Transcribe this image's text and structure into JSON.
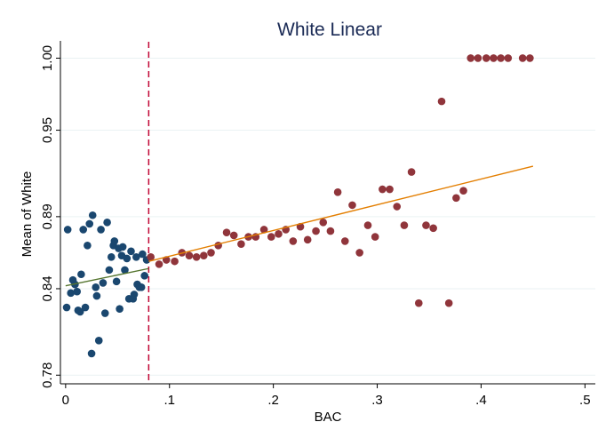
{
  "chart_data": {
    "type": "scatter",
    "title": "White Linear",
    "xlabel": "BAC",
    "ylabel": "Mean of White",
    "xlim": [
      -0.005,
      0.51
    ],
    "ylim": [
      0.774,
      1.012
    ],
    "x_ticks": [
      {
        "value": 0,
        "label": "0"
      },
      {
        "value": 0.1,
        "label": ".1"
      },
      {
        "value": 0.2,
        "label": ".2"
      },
      {
        "value": 0.3,
        "label": ".3"
      },
      {
        "value": 0.4,
        "label": ".4"
      },
      {
        "value": 0.5,
        "label": ".5"
      }
    ],
    "y_ticks": [
      {
        "value": 0.78,
        "label": "0.78"
      },
      {
        "value": 0.84,
        "label": "0.84"
      },
      {
        "value": 0.89,
        "label": "0.89"
      },
      {
        "value": 0.95,
        "label": "0.95"
      },
      {
        "value": 1.0,
        "label": "1.00"
      }
    ],
    "grid": "horizontal",
    "cutoff_x": 0.08,
    "colors": {
      "below": "#1a476f",
      "above": "#90353b",
      "fit_below": "#55752f",
      "fit_above": "#e37e00",
      "cutoff": "#c10534",
      "title": "#1a2a55"
    },
    "series": [
      {
        "points": [
          [
            0.001,
            0.827
          ],
          [
            0.002,
            0.881
          ],
          [
            0.005,
            0.837
          ],
          [
            0.007,
            0.846
          ],
          [
            0.009,
            0.843
          ],
          [
            0.011,
            0.838
          ],
          [
            0.012,
            0.825
          ],
          [
            0.014,
            0.824
          ],
          [
            0.015,
            0.85
          ],
          [
            0.017,
            0.881
          ],
          [
            0.019,
            0.827
          ],
          [
            0.021,
            0.87
          ],
          [
            0.023,
            0.885
          ],
          [
            0.025,
            0.795
          ],
          [
            0.026,
            0.891
          ],
          [
            0.029,
            0.841
          ],
          [
            0.03,
            0.835
          ],
          [
            0.032,
            0.804
          ],
          [
            0.034,
            0.881
          ],
          [
            0.036,
            0.844
          ],
          [
            0.038,
            0.823
          ],
          [
            0.04,
            0.886
          ],
          [
            0.042,
            0.853
          ],
          [
            0.044,
            0.862
          ],
          [
            0.046,
            0.87
          ],
          [
            0.047,
            0.873
          ],
          [
            0.049,
            0.845
          ],
          [
            0.051,
            0.868
          ],
          [
            0.052,
            0.826
          ],
          [
            0.054,
            0.863
          ],
          [
            0.055,
            0.869
          ],
          [
            0.057,
            0.853
          ],
          [
            0.059,
            0.861
          ],
          [
            0.061,
            0.833
          ],
          [
            0.063,
            0.866
          ],
          [
            0.065,
            0.833
          ],
          [
            0.066,
            0.836
          ],
          [
            0.068,
            0.862
          ],
          [
            0.069,
            0.843
          ],
          [
            0.071,
            0.841
          ],
          [
            0.073,
            0.841
          ],
          [
            0.074,
            0.864
          ],
          [
            0.076,
            0.849
          ],
          [
            0.078,
            0.86
          ]
        ]
      },
      {
        "points": [
          [
            0.082,
            0.862
          ],
          [
            0.09,
            0.857
          ],
          [
            0.097,
            0.86
          ],
          [
            0.105,
            0.859
          ],
          [
            0.112,
            0.865
          ],
          [
            0.119,
            0.863
          ],
          [
            0.126,
            0.862
          ],
          [
            0.133,
            0.863
          ],
          [
            0.14,
            0.865
          ],
          [
            0.147,
            0.87
          ],
          [
            0.155,
            0.879
          ],
          [
            0.162,
            0.877
          ],
          [
            0.169,
            0.871
          ],
          [
            0.176,
            0.876
          ],
          [
            0.183,
            0.876
          ],
          [
            0.191,
            0.881
          ],
          [
            0.198,
            0.876
          ],
          [
            0.205,
            0.878
          ],
          [
            0.212,
            0.881
          ],
          [
            0.219,
            0.873
          ],
          [
            0.226,
            0.883
          ],
          [
            0.233,
            0.874
          ],
          [
            0.241,
            0.88
          ],
          [
            0.248,
            0.886
          ],
          [
            0.255,
            0.88
          ],
          [
            0.262,
            0.907
          ],
          [
            0.269,
            0.873
          ],
          [
            0.276,
            0.898
          ],
          [
            0.283,
            0.865
          ],
          [
            0.291,
            0.884
          ],
          [
            0.298,
            0.876
          ],
          [
            0.305,
            0.909
          ],
          [
            0.312,
            0.909
          ],
          [
            0.319,
            0.897
          ],
          [
            0.326,
            0.884
          ],
          [
            0.333,
            0.921
          ],
          [
            0.34,
            0.83
          ],
          [
            0.347,
            0.884
          ],
          [
            0.354,
            0.882
          ],
          [
            0.362,
            0.97
          ],
          [
            0.369,
            0.83
          ],
          [
            0.376,
            0.903
          ],
          [
            0.383,
            0.908
          ],
          [
            0.39,
            1.0
          ],
          [
            0.397,
            1.0
          ],
          [
            0.405,
            1.0
          ],
          [
            0.412,
            1.0
          ],
          [
            0.419,
            1.0
          ],
          [
            0.426,
            1.0
          ],
          [
            0.44,
            1.0
          ],
          [
            0.447,
            1.0
          ]
        ]
      }
    ],
    "fit_lines": [
      {
        "x": [
          0.0,
          0.08
        ],
        "y": [
          0.842,
          0.854
        ]
      },
      {
        "x": [
          0.08,
          0.45
        ],
        "y": [
          0.859,
          0.925
        ]
      }
    ]
  }
}
